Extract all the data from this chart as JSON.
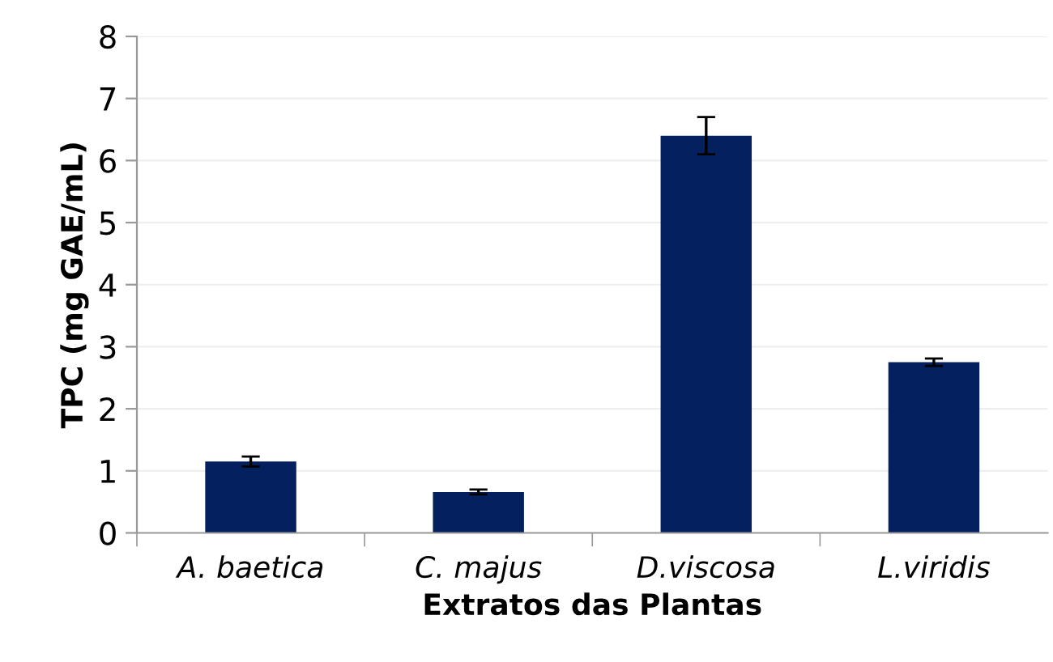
{
  "chart_data": {
    "type": "bar",
    "xlabel": "Extratos das Plantas",
    "ylabel": "TPC (mg GAE/mL)",
    "categories": [
      "A. baetica",
      "C. majus",
      "D.viscosa",
      "L.viridis"
    ],
    "values": [
      1.15,
      0.66,
      6.4,
      2.75
    ],
    "errors": [
      0.08,
      0.04,
      0.3,
      0.06
    ],
    "color": "#04205e",
    "ylim": [
      0,
      8
    ],
    "yticks": [
      0,
      1,
      2,
      3,
      4,
      5,
      6,
      7,
      8
    ],
    "grid": "y"
  }
}
